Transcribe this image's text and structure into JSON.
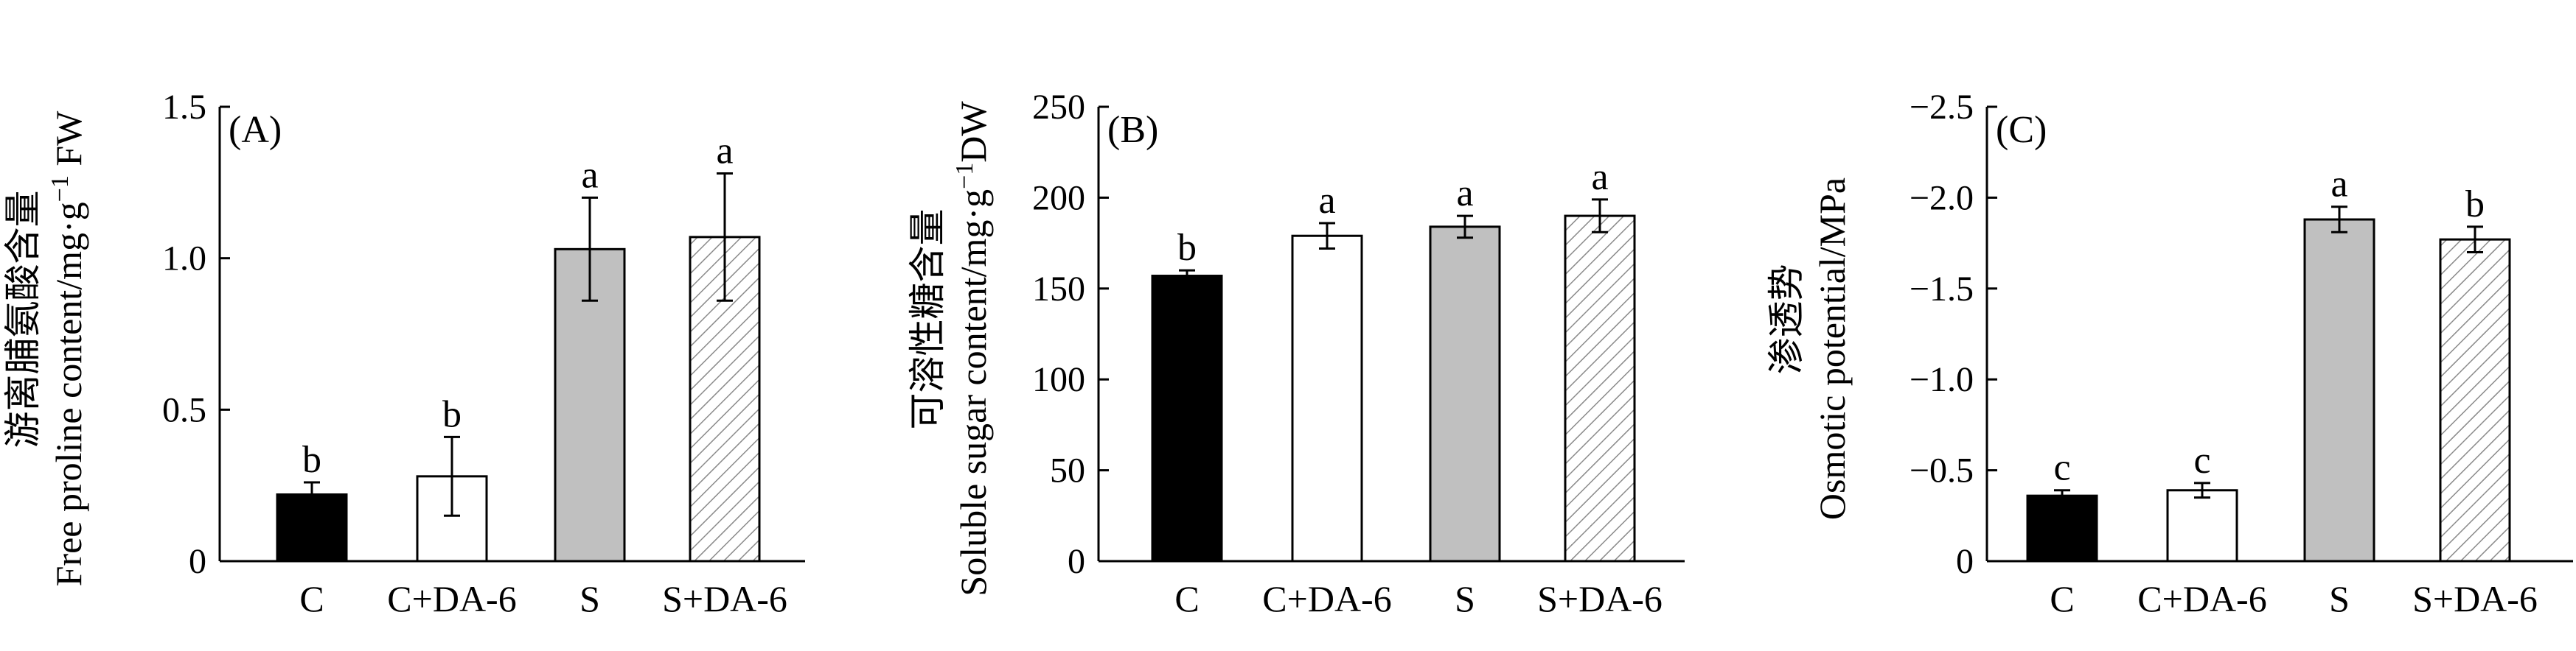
{
  "chart_data": [
    {
      "type": "bar",
      "panel_label": "(A)",
      "ylabel_cn": "游离脯氨酸含量",
      "ylabel_en": "Free proline content/mg·g",
      "ylabel_sup": "−1",
      "ylabel_unit": " FW",
      "categories": [
        "C",
        "C+DA-6",
        "S",
        "S+DA-6"
      ],
      "values": [
        0.22,
        0.28,
        1.03,
        1.07
      ],
      "errors": [
        0.04,
        0.13,
        0.17,
        0.21
      ],
      "letters": [
        "b",
        "b",
        "a",
        "a"
      ],
      "ylim": [
        0,
        1.5
      ],
      "yticks": [
        0,
        0.5,
        1.0,
        1.5
      ],
      "ytick_labels": [
        "0",
        "0.5",
        "1.0",
        "1.5"
      ]
    },
    {
      "type": "bar",
      "panel_label": "(B)",
      "ylabel_cn": "可溶性糖含量",
      "ylabel_en": "Soluble sugar content/mg·g",
      "ylabel_sup": "−1",
      "ylabel_unit": "DW",
      "categories": [
        "C",
        "C+DA-6",
        "S",
        "S+DA-6"
      ],
      "values": [
        157,
        179,
        184,
        190
      ],
      "errors": [
        3,
        7,
        6,
        9
      ],
      "letters": [
        "b",
        "a",
        "a",
        "a"
      ],
      "ylim": [
        0,
        250
      ],
      "yticks": [
        0,
        50,
        100,
        150,
        200,
        250
      ],
      "ytick_labels": [
        "0",
        "50",
        "100",
        "150",
        "200",
        "250"
      ]
    },
    {
      "type": "bar",
      "panel_label": "(C)",
      "ylabel_cn": "渗透势",
      "ylabel_en": "Osmotic potential/MPa",
      "ylabel_sup": "",
      "ylabel_unit": "",
      "categories": [
        "C",
        "C+DA-6",
        "S",
        "S+DA-6"
      ],
      "values": [
        -0.36,
        -0.39,
        -1.88,
        -1.77
      ],
      "errors": [
        0.03,
        0.04,
        0.07,
        0.07
      ],
      "letters": [
        "c",
        "c",
        "a",
        "b"
      ],
      "ylim": [
        0,
        -2.5
      ],
      "yticks": [
        0,
        -0.5,
        -1.0,
        -1.5,
        -2.0,
        -2.5
      ],
      "ytick_labels": [
        "0",
        "−0.5",
        "−1.0",
        "−1.5",
        "−2.0",
        "−2.5"
      ]
    }
  ],
  "colors": {
    "C": "#000000",
    "C+DA-6": "#ffffff",
    "S": "#c0c0c0",
    "S+DA-6": "hatched"
  }
}
